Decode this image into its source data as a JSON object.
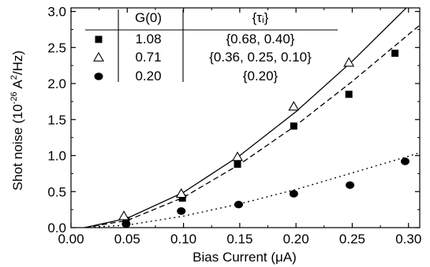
{
  "chart_data": {
    "type": "scatter",
    "title": "",
    "xlabel": "Bias Current (μA)",
    "ylabel_main": "Shot noise (10",
    "ylabel_exp1": "-26",
    "ylabel_mid": " A",
    "ylabel_exp2": "2",
    "ylabel_tail": "/Hz)",
    "xlim": [
      0.0,
      0.31
    ],
    "ylim": [
      0.0,
      3.05
    ],
    "xticks": [
      "0.00",
      "0.05",
      "0.10",
      "0.15",
      "0.20",
      "0.25",
      "0.30"
    ],
    "yticks": [
      "0.0",
      "0.5",
      "1.0",
      "1.5",
      "2.0",
      "2.5",
      "3.0"
    ],
    "legend": {
      "headers": [
        "G(0)",
        "{τᵢ}"
      ],
      "rows": [
        {
          "marker": "filled-square",
          "g0": "1.08",
          "tau": "{0.68, 0.40}"
        },
        {
          "marker": "open-triangle",
          "g0": "0.71",
          "tau": "{0.36, 0.25, 0.10}"
        },
        {
          "marker": "filled-circle",
          "g0": "0.20",
          "tau": "{0.20}"
        }
      ]
    },
    "series": [
      {
        "marker": "filled-square",
        "x": [
          0.049,
          0.099,
          0.148,
          0.198,
          0.247,
          0.288
        ],
        "y": [
          0.1,
          0.41,
          0.88,
          1.41,
          1.85,
          2.42
        ]
      },
      {
        "marker": "open-triangle",
        "x": [
          0.047,
          0.098,
          0.148,
          0.198,
          0.247
        ],
        "y": [
          0.16,
          0.47,
          0.98,
          1.68,
          2.29
        ]
      },
      {
        "marker": "filled-circle",
        "x": [
          0.049,
          0.098,
          0.149,
          0.198,
          0.248,
          0.297
        ],
        "y": [
          0.05,
          0.23,
          0.32,
          0.47,
          0.59,
          0.92
        ]
      }
    ],
    "fits": [
      {
        "style": "solid",
        "x": [
          0.012,
          0.05,
          0.1,
          0.15,
          0.2,
          0.25,
          0.3,
          0.31
        ],
        "y": [
          0.0,
          0.13,
          0.49,
          1.0,
          1.61,
          2.31,
          3.08,
          3.1
        ]
      },
      {
        "style": "dashed",
        "x": [
          0.012,
          0.05,
          0.1,
          0.15,
          0.2,
          0.25,
          0.3,
          0.31
        ],
        "y": [
          0.0,
          0.1,
          0.42,
          0.88,
          1.42,
          2.03,
          2.68,
          2.81
        ]
      },
      {
        "style": "dotted",
        "x": [
          0.012,
          0.05,
          0.1,
          0.15,
          0.2,
          0.25,
          0.3,
          0.31
        ],
        "y": [
          0.0,
          0.035,
          0.16,
          0.33,
          0.53,
          0.76,
          0.99,
          1.04
        ]
      }
    ]
  }
}
